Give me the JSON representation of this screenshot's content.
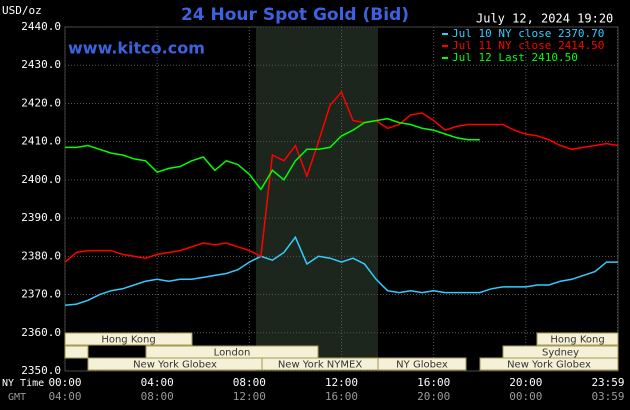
{
  "chart_data": {
    "type": "line",
    "title": "24 Hour Spot Gold (Bid)",
    "subtitle": "July 12, 2024 19:20",
    "watermark": "www.kitco.com",
    "y_label": "USD/oz",
    "x_label": "NY Time",
    "x2_label": "GMT",
    "x": [
      0,
      0.5,
      1,
      1.5,
      2,
      2.5,
      3,
      3.5,
      4,
      4.5,
      5,
      5.5,
      6,
      6.5,
      7,
      7.5,
      8,
      8.5,
      9,
      9.5,
      10,
      10.5,
      11,
      11.5,
      12,
      12.5,
      13,
      13.5,
      14,
      14.5,
      15,
      15.5,
      16,
      16.5,
      17,
      17.5,
      18,
      18.5,
      19,
      19.5,
      20,
      20.5,
      21,
      21.5,
      22,
      22.5,
      23,
      23.5,
      24
    ],
    "series": [
      {
        "name": "Jul 10 NY close 2370.70",
        "color": "#33ccff",
        "values": [
          2367.2,
          2367.5,
          2368.5,
          2370,
          2371,
          2371.5,
          2372.5,
          2373.5,
          2374,
          2373.5,
          2374,
          2374,
          2374.5,
          2375,
          2375.5,
          2376.5,
          2378.5,
          2380,
          2379,
          2381,
          2385,
          2378,
          2380,
          2379.5,
          2378.5,
          2379.5,
          2378,
          2374,
          2371,
          2370.5,
          2371,
          2370.5,
          2371,
          2370.5,
          2370.5,
          2370.5,
          2370.5,
          2371.5,
          2372,
          2372,
          2372,
          2372.5,
          2372.5,
          2373.5,
          2374,
          2375,
          2376,
          2378.5,
          2378.5
        ]
      },
      {
        "name": "Jul 11 NY close 2414.50",
        "color": "#ff0000",
        "values": [
          2378.5,
          2381,
          2381.5,
          2381.5,
          2381.5,
          2380.5,
          2380,
          2379.5,
          2380.5,
          2381,
          2381.5,
          2382.5,
          2383.5,
          2383,
          2383.5,
          2382.5,
          2381.5,
          2380,
          2406.5,
          2405,
          2409,
          2401,
          2410,
          2419.5,
          2423,
          2415.5,
          2415,
          2415.5,
          2413.5,
          2414.5,
          2417,
          2417.5,
          2415.5,
          2413,
          2414,
          2414.5,
          2414.5,
          2414.5,
          2414.5,
          2413,
          2412,
          2411.5,
          2410.5,
          2409,
          2408,
          2408.5,
          2409,
          2409.5,
          2409
        ]
      },
      {
        "name": "Jul 12 Last 2410.50",
        "color": "#00ff00",
        "values": [
          2408.5,
          2408.5,
          2409,
          2408,
          2407,
          2406.5,
          2405.5,
          2405,
          2402,
          2403,
          2403.5,
          2405,
          2406,
          2402.5,
          2405,
          2404,
          2401.5,
          2397.5,
          2402.5,
          2400,
          2405,
          2408,
          2408,
          2408.5,
          2411.5,
          2413,
          2415,
          2415.5,
          2416,
          2415,
          2414.5,
          2413.5,
          2413,
          2412,
          2411,
          2410.5,
          2410.5,
          null,
          null,
          null,
          null,
          null,
          null,
          null,
          null,
          null,
          null,
          null,
          null
        ]
      }
    ],
    "xlim": [
      0,
      24
    ],
    "xticks": [
      {
        "value": 0,
        "label": "00:00"
      },
      {
        "value": 4,
        "label": "04:00"
      },
      {
        "value": 8,
        "label": "08:00"
      },
      {
        "value": 12,
        "label": "12:00"
      },
      {
        "value": 16,
        "label": "16:00"
      },
      {
        "value": 20,
        "label": "20:00"
      },
      {
        "value": 23.98,
        "label": "23:59"
      }
    ],
    "x2ticks": [
      {
        "value": 0,
        "label": "04:00"
      },
      {
        "value": 4,
        "label": "08:00"
      },
      {
        "value": 8,
        "label": "12:00"
      },
      {
        "value": 12,
        "label": "16:00"
      },
      {
        "value": 16,
        "label": "20:00"
      },
      {
        "value": 20,
        "label": "00:00"
      },
      {
        "value": 23.98,
        "label": "03:59"
      }
    ],
    "ylim": [
      2350,
      2440
    ],
    "yticks": [
      {
        "value": 2350,
        "label": "2350.0"
      },
      {
        "value": 2360,
        "label": "2360.0"
      },
      {
        "value": 2370,
        "label": "2370.0"
      },
      {
        "value": 2380,
        "label": "2380.0"
      },
      {
        "value": 2390,
        "label": "2390.0"
      },
      {
        "value": 2400,
        "label": "2400.0"
      },
      {
        "value": 2410,
        "label": "2410.0"
      },
      {
        "value": 2420,
        "label": "2420.0"
      },
      {
        "value": 2430,
        "label": "2430.0"
      },
      {
        "value": 2440,
        "label": "2440.0"
      }
    ],
    "grid": true,
    "sessions": [
      "Hong Kong",
      "London",
      "New York Globex",
      "New York NYMEX",
      "NY Globex",
      "Hong Kong",
      "Sydney",
      "New York Globex"
    ]
  }
}
